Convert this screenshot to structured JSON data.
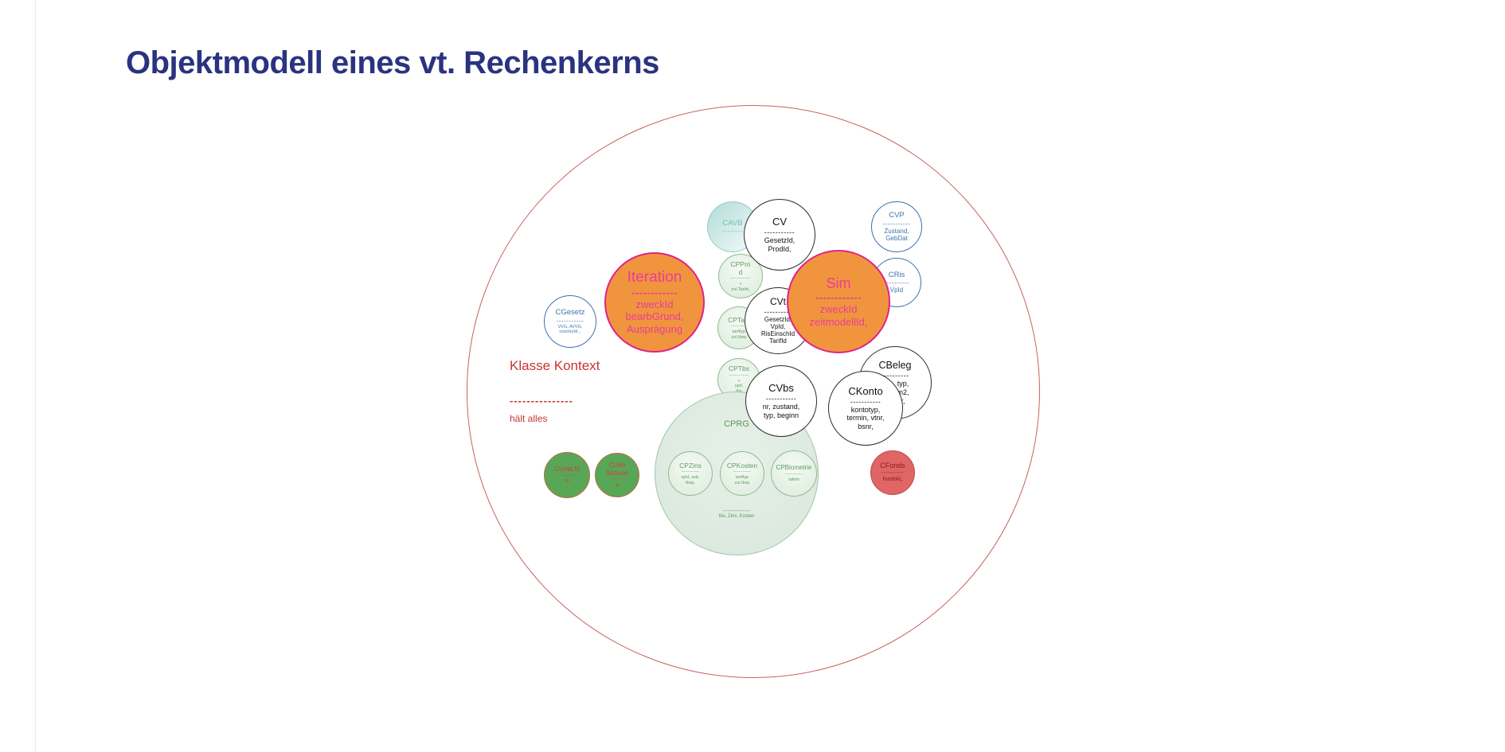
{
  "title": "Objektmodell eines vt. Rechenkerns",
  "context": {
    "label": "Klasse Kontext",
    "dashes": "---------------",
    "note": "hält alles"
  },
  "colors": {
    "title_navy": "#2A3380",
    "context_red": "#CC3333",
    "outer_circle_stroke": "#C4625D",
    "orange_fill": "#F0953E",
    "magenta_accent": "#E0218A",
    "blue_accent": "#3E72AD",
    "light_green_fill": "#E6F0E8",
    "green_fill": "#57A757",
    "red_fill": "#E06565",
    "teal_accent": "#72C0B8"
  },
  "circles": {
    "cavb": {
      "name": "CAVB",
      "sep": "--------",
      "attrs": ""
    },
    "cgesetz": {
      "name": "CGesetz",
      "sep": "-----------",
      "attrs": "VVG, AVVG,\ncountryId..."
    },
    "cvp": {
      "name": "CVP",
      "sep": "-----------",
      "attrs": "Zustand,\nGebDat"
    },
    "cris": {
      "name": "CRis",
      "sep": "----------",
      "attrs": "VpId"
    },
    "cv": {
      "name": "CV",
      "sep": "-----------",
      "attrs": "GesetzId,\nProdId,"
    },
    "cvt": {
      "name": "CVt",
      "sep": "----------",
      "attrs": "GesetzId,\nVpId,\nRisEinschId\nTarifId"
    },
    "cvbs": {
      "name": "CVbs",
      "sep": "-----------",
      "attrs": "nr, zustand,\ntyp, beginn"
    },
    "ckonto": {
      "name": "CKonto",
      "sep": "-----------",
      "attrs": "kontotyp,\ntermin, vtnr,\nbsnr,"
    },
    "cbeleg": {
      "name": "CBeleg",
      "sep": "----------",
      "attrs": "typ,\nm2,\nr,"
    },
    "iteration": {
      "name": "Iteration",
      "sep": "------------",
      "attrs": "zweckId\nbearbGrund,\nAusprägung"
    },
    "sim": {
      "name": "Sim",
      "sep": "------------",
      "attrs": "zweckId\nzeitmodellId,"
    },
    "cpprod": {
      "name": "CPProd",
      "sep": "----------",
      "attrs": "+\nzul.Tarife,"
    },
    "cptarif": {
      "name": "CPTarif",
      "sep": "--------",
      "attrs": "tariftyp\nzul.tbsp"
    },
    "cptbs": {
      "name": "CPTbs",
      "sep": "----------",
      "attrs": "+\nupd,\ntbs"
    },
    "cprg": {
      "name": "CPRG",
      "sep": "-----------",
      "attrs": "tbs, Zins, Kosten"
    },
    "cpzins": {
      "name": "CPZins",
      "sep": "---------",
      "attrs": "rgId, avb,\ntbsp,"
    },
    "cpkosten": {
      "name": "CPKosten",
      "sep": "---------",
      "attrs": "tariftyp\nzul.tbsp"
    },
    "cpbiometrie": {
      "name": "CPBiometrie",
      "sep": "---------",
      "attrs": "tafeln"
    },
    "cueblfd": {
      "name": "CUebLfd",
      "sep": "--------",
      "attrs": "id"
    },
    "cuebschluss": {
      "name": "CUeb Schluss",
      "sep": "--------",
      "attrs": "id"
    },
    "cfonds": {
      "name": "CFonds",
      "sep": "----------",
      "attrs": "fondskt,"
    }
  }
}
